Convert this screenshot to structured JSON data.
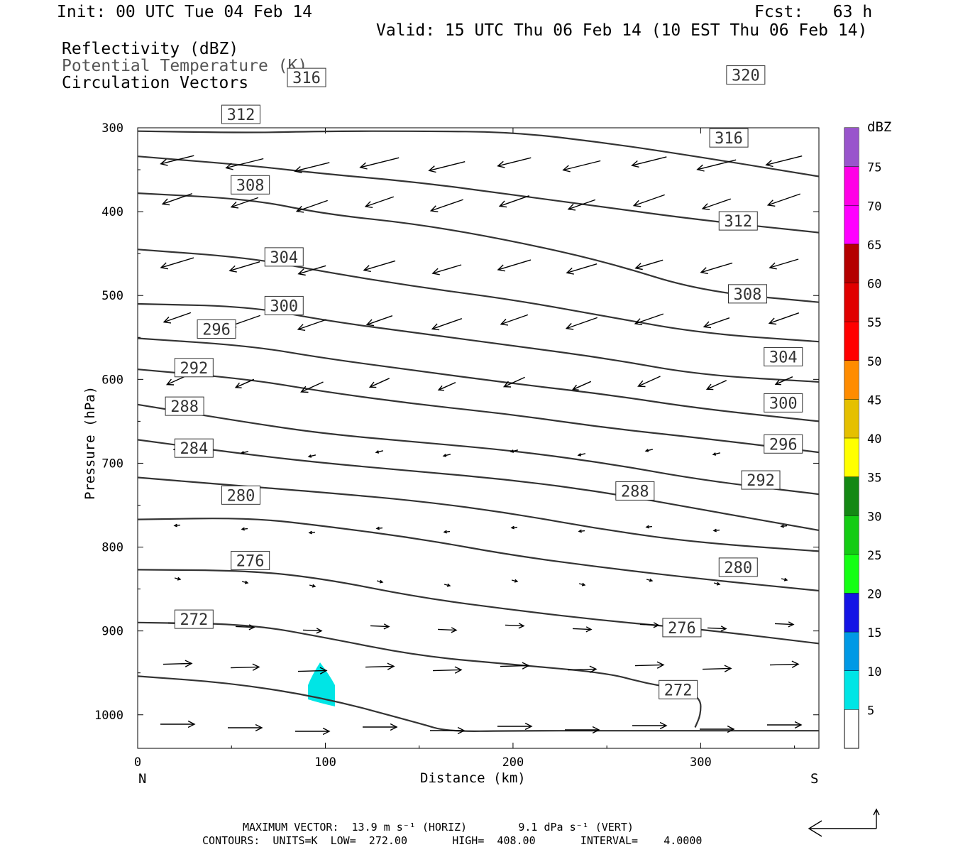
{
  "header": {
    "init": "Init: 00 UTC Tue 04 Feb 14",
    "fcst": "Fcst:   63 h",
    "valid": "Valid: 15 UTC Thu 06 Feb 14 (10 EST Thu 06 Feb 14)",
    "field1": "Reflectivity (dBZ)",
    "field2": "Potential Temperature (K)",
    "field3": "Circulation Vectors"
  },
  "footer": {
    "line1": "MAXIMUM VECTOR:  13.9 m s⁻¹ (HORIZ)        9.1 dPa s⁻¹ (VERT)",
    "line2": "CONTOURS:  UNITS=K  LOW=  272.00       HIGH=  408.00       INTERVAL=    4.0000"
  },
  "colorbar": {
    "title": "dBZ",
    "levels": [
      5,
      10,
      15,
      20,
      25,
      30,
      35,
      40,
      45,
      50,
      55,
      60,
      65,
      70,
      75
    ],
    "colors": [
      "#00e5e5",
      "#0099e5",
      "#1414e5",
      "#14ff14",
      "#14cc14",
      "#148814",
      "#ffff00",
      "#e5c000",
      "#ff8c00",
      "#ff0000",
      "#e00000",
      "#b40000",
      "#ff00ff",
      "#ff00e6",
      "#9955cc"
    ],
    "labels": [
      "5",
      "10",
      "15",
      "20",
      "25",
      "30",
      "35",
      "40",
      "45",
      "50",
      "55",
      "60",
      "65",
      "70",
      "75"
    ]
  },
  "colors": {
    "contour": "#333333",
    "echo": "#00e5e5"
  },
  "chart_data": {
    "type": "cross-section",
    "xlabel": "Distance (km)",
    "ylabel": "Pressure (hPa)",
    "xlim": [
      0,
      363
    ],
    "ylim": [
      1040,
      300
    ],
    "x_ticks": [
      0,
      100,
      200,
      300
    ],
    "x_tick_labels": [
      "0",
      "100",
      "200",
      "300"
    ],
    "y_ticks": [
      300,
      400,
      500,
      600,
      700,
      800,
      900,
      1000
    ],
    "y_tick_labels": [
      "300",
      "400",
      "500",
      "600",
      "700",
      "800",
      "900",
      "1000"
    ],
    "x_end_labels": {
      "left": "N",
      "right": "S"
    },
    "theta_contours": [
      {
        "label": "272",
        "points": [
          [
            0,
            954
          ],
          [
            50,
            962
          ],
          [
            100,
            980
          ],
          [
            150,
            1010
          ],
          [
            165,
            1020
          ],
          [
            200,
            1019
          ],
          [
            250,
            1019
          ],
          [
            300,
            1019
          ],
          [
            363,
            1019
          ]
        ],
        "label_at": [
          288,
          970
        ]
      },
      {
        "label": "272",
        "points": [
          [
            0,
            890
          ],
          [
            60,
            892
          ],
          [
            100,
            908
          ],
          [
            150,
            930
          ],
          [
            200,
            940
          ],
          [
            250,
            950
          ],
          [
            270,
            962
          ],
          [
            290,
            970
          ],
          [
            300,
            980
          ],
          [
            300,
            1000
          ],
          [
            297,
            1015
          ]
        ],
        "label_at": [
          30,
          886
        ]
      },
      {
        "label": "276",
        "points": [
          [
            0,
            827
          ],
          [
            60,
            828
          ],
          [
            100,
            838
          ],
          [
            150,
            860
          ],
          [
            200,
            875
          ],
          [
            250,
            888
          ],
          [
            300,
            898
          ],
          [
            363,
            915
          ]
        ],
        "label_at": [
          60,
          816
        ]
      },
      {
        "label": "276",
        "points": [],
        "label_at": [
          290,
          896
        ]
      },
      {
        "label": "280",
        "points": [
          [
            0,
            767
          ],
          [
            60,
            765
          ],
          [
            100,
            775
          ],
          [
            150,
            790
          ],
          [
            200,
            810
          ],
          [
            250,
            825
          ],
          [
            300,
            838
          ],
          [
            363,
            852
          ]
        ],
        "label_at": [
          55,
          738
        ]
      },
      {
        "label": "280",
        "points": [],
        "label_at": [
          320,
          824
        ]
      },
      {
        "label": "284",
        "points": [
          [
            0,
            717
          ],
          [
            60,
            728
          ],
          [
            100,
            735
          ],
          [
            150,
            745
          ],
          [
            200,
            760
          ],
          [
            250,
            780
          ],
          [
            300,
            795
          ],
          [
            363,
            805
          ]
        ],
        "label_at": [
          30,
          682
        ]
      },
      {
        "label": "288",
        "points": [
          [
            0,
            672
          ],
          [
            60,
            690
          ],
          [
            100,
            700
          ],
          [
            150,
            710
          ],
          [
            200,
            720
          ],
          [
            250,
            735
          ],
          [
            300,
            755
          ],
          [
            363,
            780
          ]
        ],
        "label_at": [
          25,
          632
        ]
      },
      {
        "label": "288",
        "points": [],
        "label_at": [
          265,
          733
        ]
      },
      {
        "label": "292",
        "points": [
          [
            0,
            630
          ],
          [
            60,
            652
          ],
          [
            100,
            665
          ],
          [
            150,
            675
          ],
          [
            200,
            685
          ],
          [
            250,
            700
          ],
          [
            300,
            720
          ],
          [
            363,
            737
          ]
        ],
        "label_at": [
          30,
          586
        ]
      },
      {
        "label": "292",
        "points": [],
        "label_at": [
          332,
          720
        ]
      },
      {
        "label": "296",
        "points": [
          [
            0,
            588
          ],
          [
            60,
            600
          ],
          [
            100,
            615
          ],
          [
            150,
            630
          ],
          [
            200,
            642
          ],
          [
            250,
            658
          ],
          [
            300,
            670
          ],
          [
            363,
            687
          ]
        ],
        "label_at": [
          42,
          540
        ]
      },
      {
        "label": "296",
        "points": [],
        "label_at": [
          344,
          677
        ]
      },
      {
        "label": "300",
        "points": [
          [
            0,
            551
          ],
          [
            60,
            560
          ],
          [
            100,
            575
          ],
          [
            150,
            590
          ],
          [
            200,
            605
          ],
          [
            250,
            618
          ],
          [
            300,
            635
          ],
          [
            363,
            650
          ]
        ],
        "label_at": [
          78,
          512
        ]
      },
      {
        "label": "300",
        "points": [],
        "label_at": [
          344,
          628
        ]
      },
      {
        "label": "304",
        "points": [
          [
            0,
            510
          ],
          [
            60,
            513
          ],
          [
            100,
            530
          ],
          [
            150,
            545
          ],
          [
            200,
            560
          ],
          [
            250,
            575
          ],
          [
            300,
            595
          ],
          [
            363,
            603
          ]
        ],
        "label_at": [
          78,
          454
        ]
      },
      {
        "label": "304",
        "points": [],
        "label_at": [
          344,
          573
        ]
      },
      {
        "label": "308",
        "points": [
          [
            0,
            445
          ],
          [
            60,
            455
          ],
          [
            100,
            472
          ],
          [
            150,
            490
          ],
          [
            200,
            505
          ],
          [
            250,
            525
          ],
          [
            300,
            545
          ],
          [
            363,
            555
          ]
        ],
        "label_at": [
          60,
          368
        ]
      },
      {
        "label": "308",
        "points": [],
        "label_at": [
          325,
          498
        ]
      },
      {
        "label": "312",
        "points": [
          [
            0,
            378
          ],
          [
            60,
            385
          ],
          [
            100,
            403
          ],
          [
            150,
            415
          ],
          [
            200,
            435
          ],
          [
            250,
            460
          ],
          [
            300,
            495
          ],
          [
            363,
            508
          ]
        ],
        "label_at": [
          55,
          284
        ]
      },
      {
        "label": "312",
        "points": [],
        "label_at": [
          320,
          411
        ]
      },
      {
        "label": "316",
        "points": [
          [
            0,
            334
          ],
          [
            60,
            345
          ],
          [
            100,
            355
          ],
          [
            150,
            365
          ],
          [
            200,
            380
          ],
          [
            250,
            395
          ],
          [
            300,
            410
          ],
          [
            363,
            425
          ]
        ],
        "label_at": [
          90,
          240
        ]
      },
      {
        "label": "316",
        "points": [],
        "label_at": [
          315,
          312
        ]
      },
      {
        "label": "320",
        "points": [
          [
            0,
            304
          ],
          [
            60,
            306
          ],
          [
            100,
            304
          ],
          [
            150,
            304
          ],
          [
            200,
            305
          ],
          [
            250,
            318
          ],
          [
            300,
            335
          ],
          [
            363,
            358
          ]
        ],
        "label_at": [
          324,
          237
        ]
      }
    ],
    "echo_region": {
      "dbz": "5-10",
      "x_range_km": [
        90,
        105
      ],
      "p_range_hPa": [
        935,
        990
      ]
    }
  }
}
